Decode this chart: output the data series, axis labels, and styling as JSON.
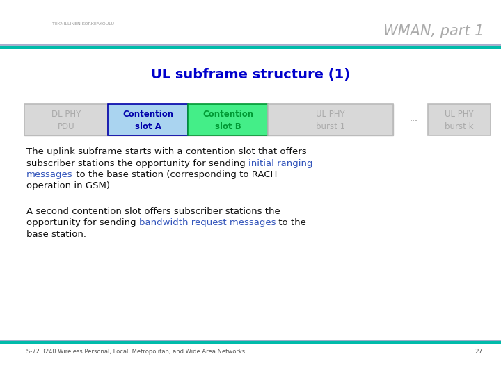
{
  "title": "WMAN, part 1",
  "subtitle": "UL subframe structure (1)",
  "subtitle_color": "#0000cc",
  "title_color": "#aaaaaa",
  "bg_color": "#ffffff",
  "footer_text": "S-72.3240 Wireless Personal, Local, Metropolitan, and Wide Area Networks",
  "footer_page": "27",
  "boxes": [
    {
      "label1": "DL PHY",
      "label2": "PDU",
      "fill": "#d8d8d8",
      "edge": "#bbbbbb",
      "text_color": "#aaaaaa",
      "bold": false
    },
    {
      "label1": "Contention",
      "label2": "slot A",
      "fill": "#aad4f0",
      "edge": "#0000aa",
      "text_color": "#0000aa",
      "bold": true
    },
    {
      "label1": "Contention",
      "label2": "slot B",
      "fill": "#44ee88",
      "edge": "#009933",
      "text_color": "#009933",
      "bold": true
    },
    {
      "label1": "UL PHY",
      "label2": "burst 1",
      "fill": "#d8d8d8",
      "edge": "#bbbbbb",
      "text_color": "#aaaaaa",
      "bold": false
    }
  ],
  "last_box": {
    "label1": "UL PHY",
    "label2": "burst k",
    "fill": "#d8d8d8",
    "edge": "#bbbbbb",
    "text_color": "#aaaaaa",
    "bold": false
  },
  "highlight_color": "#3355bb"
}
